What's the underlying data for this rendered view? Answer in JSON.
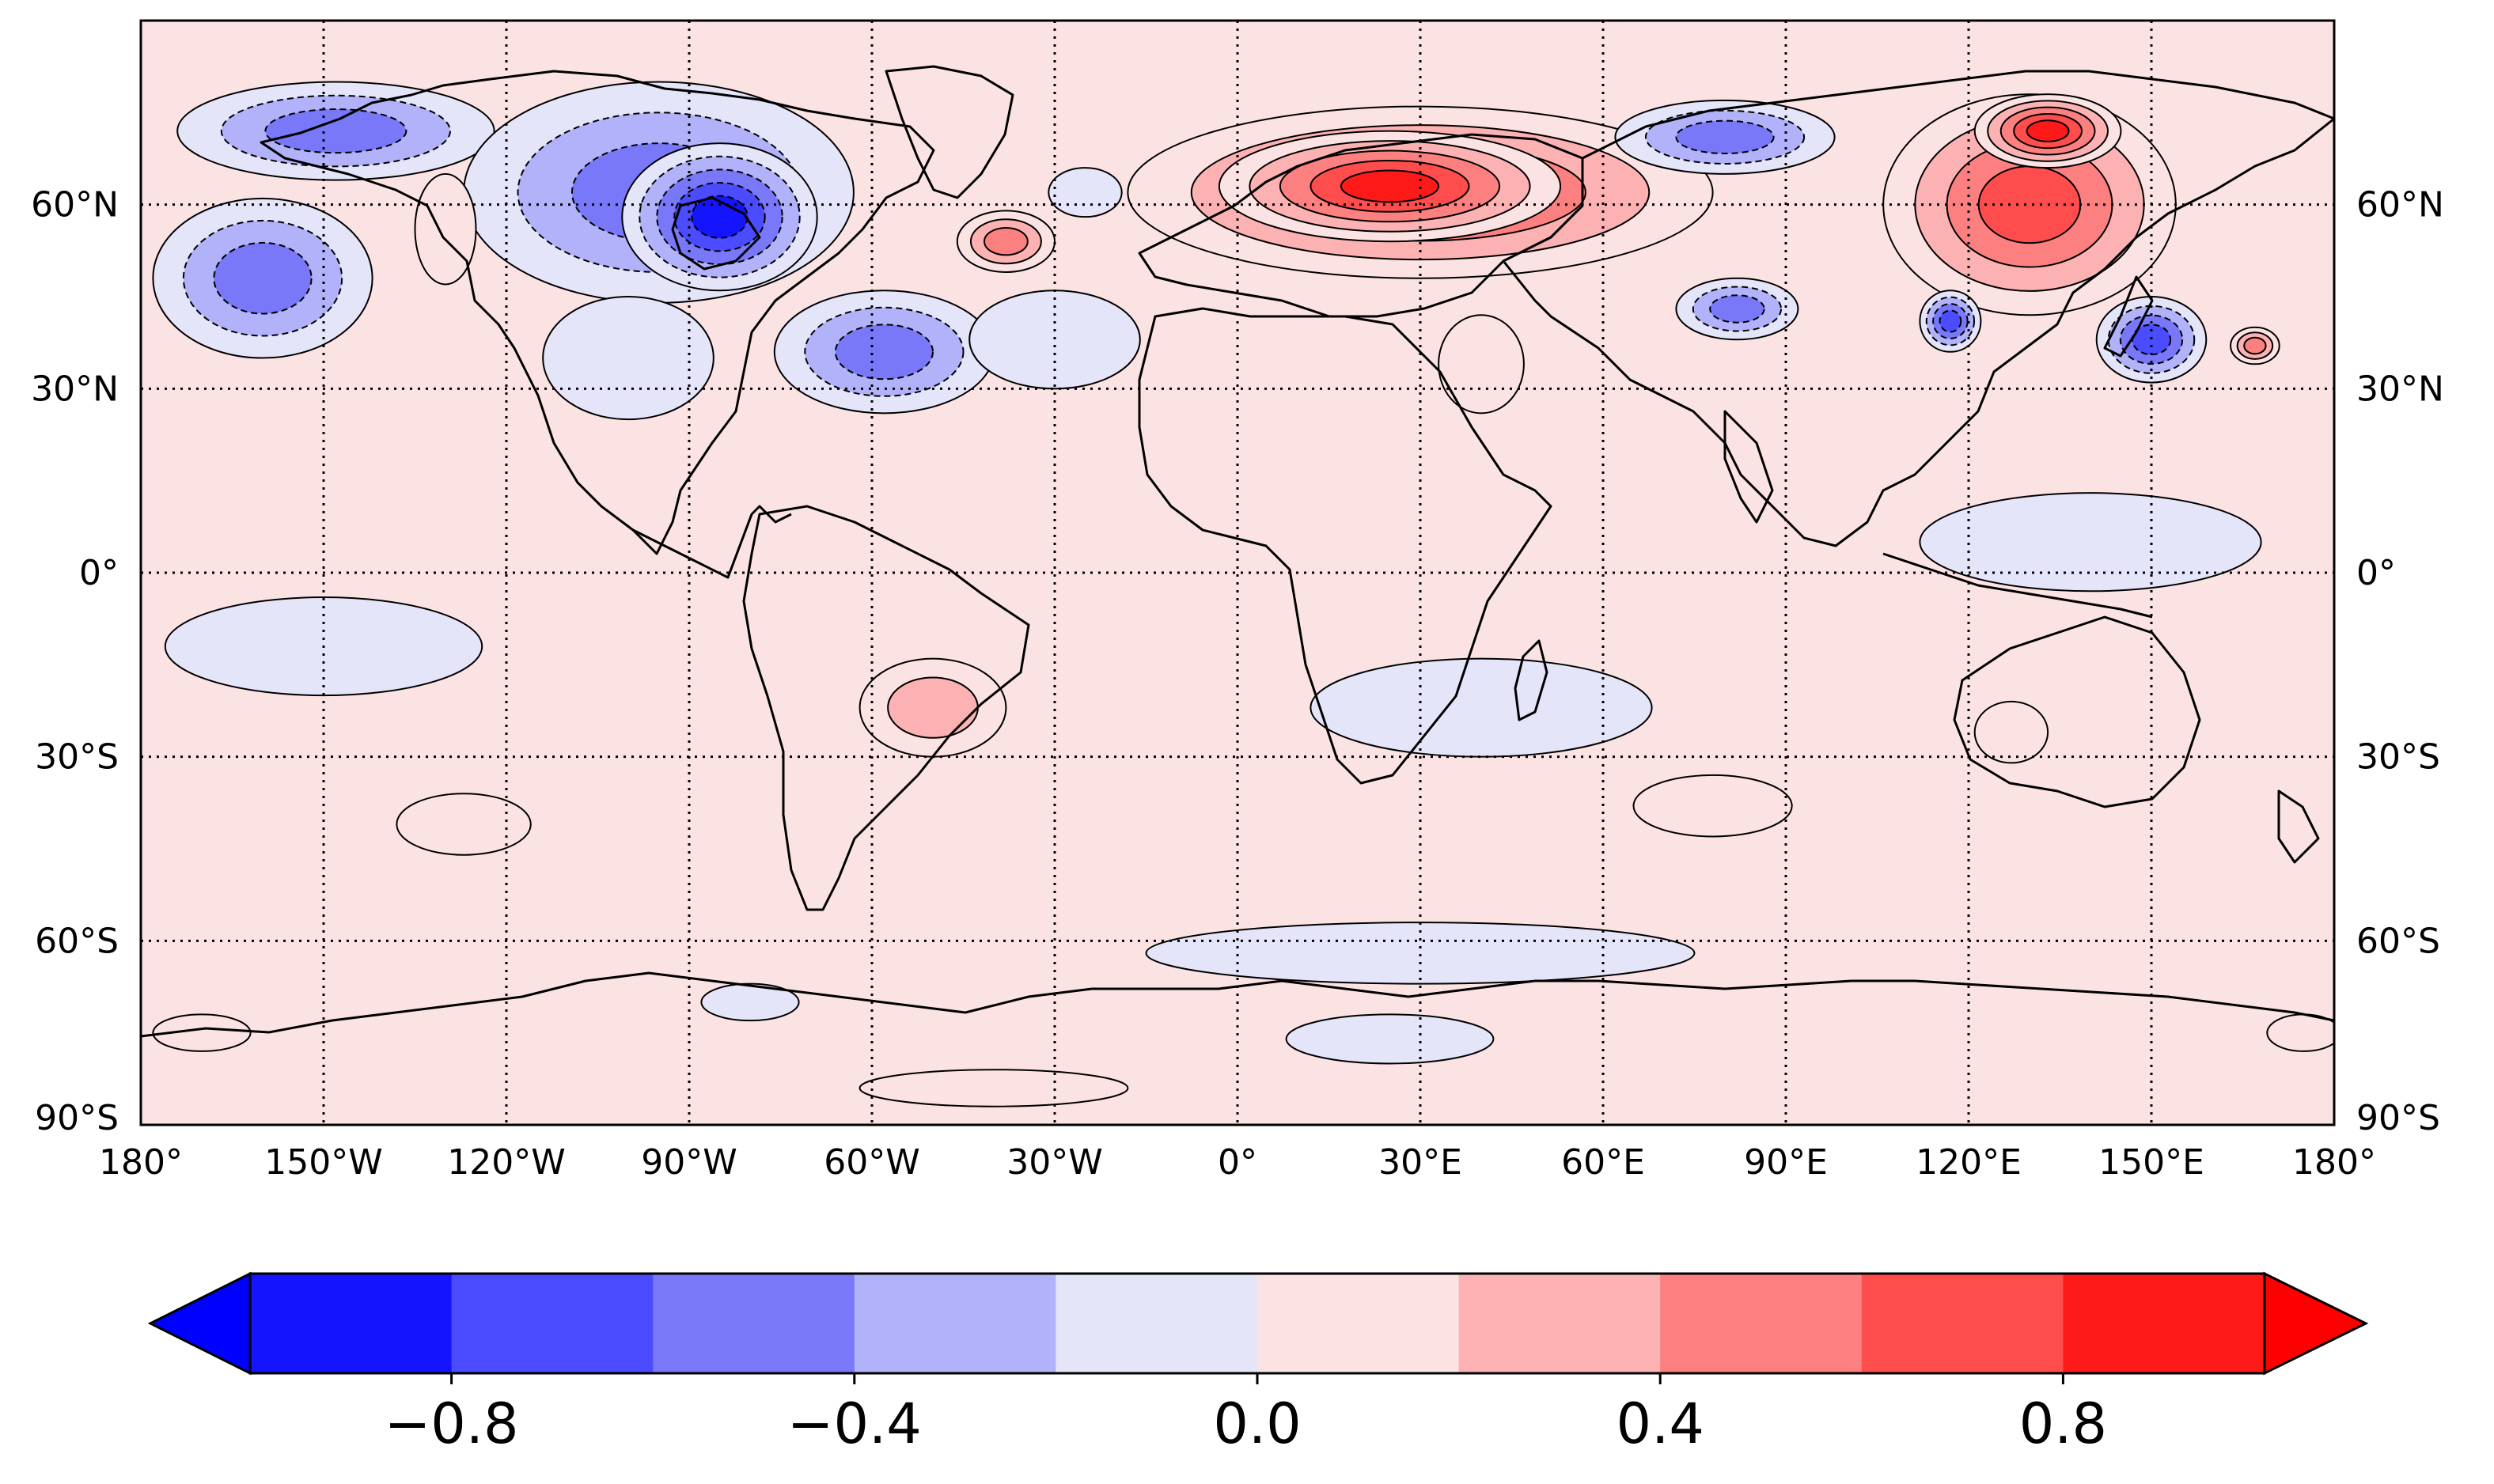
{
  "map": {
    "projection": "PlateCarree",
    "lon_range": [
      -180,
      180
    ],
    "lat_range": [
      -90,
      90
    ],
    "lon_ticks": [
      {
        "value": -180,
        "label": "180°"
      },
      {
        "value": -150,
        "label": "150°W"
      },
      {
        "value": -120,
        "label": "120°W"
      },
      {
        "value": -90,
        "label": "90°W"
      },
      {
        "value": -60,
        "label": "60°W"
      },
      {
        "value": -30,
        "label": "30°W"
      },
      {
        "value": 0,
        "label": "0°"
      },
      {
        "value": 30,
        "label": "30°E"
      },
      {
        "value": 60,
        "label": "60°E"
      },
      {
        "value": 90,
        "label": "90°E"
      },
      {
        "value": 120,
        "label": "120°E"
      },
      {
        "value": 150,
        "label": "150°E"
      },
      {
        "value": 180,
        "label": "180°"
      }
    ],
    "lat_ticks": [
      {
        "value": 60,
        "label": "60°N"
      },
      {
        "value": 30,
        "label": "30°N"
      },
      {
        "value": 0,
        "label": "0°"
      },
      {
        "value": -30,
        "label": "30°S"
      },
      {
        "value": -60,
        "label": "60°S"
      },
      {
        "value": -90,
        "label": "90°S"
      }
    ],
    "gridlines": true,
    "anomaly_regions": [
      {
        "name": "north-pacific-cold-pool",
        "lon": -160,
        "lat": 48,
        "rlon": 18,
        "rlat": 13,
        "value": -0.6
      },
      {
        "name": "bering-alaska-cold-core",
        "lon": -148,
        "lat": 72,
        "rlon": 26,
        "rlat": 8,
        "value": -0.7
      },
      {
        "name": "canada-cold-anomaly",
        "lon": -95,
        "lat": 62,
        "rlon": 32,
        "rlat": 18,
        "value": -0.6
      },
      {
        "name": "hudson-cold-core",
        "lon": -85,
        "lat": 58,
        "rlon": 16,
        "rlat": 12,
        "value": -0.9
      },
      {
        "name": "north-atlantic-cold-anomaly",
        "lon": -58,
        "lat": 36,
        "rlon": 18,
        "rlat": 10,
        "value": -0.5
      },
      {
        "name": "mid-atlantic-cold-band",
        "lon": -30,
        "lat": 38,
        "rlon": 14,
        "rlat": 8,
        "value": -0.3
      },
      {
        "name": "us-cold-anomaly",
        "lon": -100,
        "lat": 35,
        "rlon": 14,
        "rlat": 10,
        "value": -0.3
      },
      {
        "name": "gulf-alaska-warm",
        "lon": -130,
        "lat": 56,
        "rlon": 5,
        "rlat": 9,
        "value": 0.3
      },
      {
        "name": "iceland-cold-spot",
        "lon": -25,
        "lat": 62,
        "rlon": 6,
        "rlat": 4,
        "value": -0.3
      },
      {
        "name": "greenland-sea-warm",
        "lon": -38,
        "lat": 54,
        "rlon": 8,
        "rlat": 5,
        "value": 0.7
      },
      {
        "name": "eurasia-warm-anomaly",
        "lon": 30,
        "lat": 62,
        "rlon": 48,
        "rlat": 14,
        "value": 0.75
      },
      {
        "name": "russia-warm-core",
        "lon": 25,
        "lat": 63,
        "rlon": 28,
        "rlat": 9,
        "value": 0.95
      },
      {
        "name": "middle-east-warm",
        "lon": 40,
        "lat": 34,
        "rlon": 7,
        "rlat": 8,
        "value": 0.3
      },
      {
        "name": "siberia-cold-anomaly",
        "lon": 80,
        "lat": 71,
        "rlon": 18,
        "rlat": 6,
        "value": -0.5
      },
      {
        "name": "central-asia-cold",
        "lon": 82,
        "lat": 43,
        "rlon": 10,
        "rlat": 5,
        "value": -0.5
      },
      {
        "name": "east-asia-warm-anomaly",
        "lon": 130,
        "lat": 60,
        "rlon": 24,
        "rlat": 18,
        "value": 0.75
      },
      {
        "name": "far-east-warm-core",
        "lon": 133,
        "lat": 72,
        "rlon": 12,
        "rlat": 6,
        "value": 0.95
      },
      {
        "name": "china-cold-spot",
        "lon": 117,
        "lat": 41,
        "rlon": 5,
        "rlat": 5,
        "value": -0.8
      },
      {
        "name": "japan-cold-spot",
        "lon": 150,
        "lat": 38,
        "rlon": 9,
        "rlat": 7,
        "value": -0.8
      },
      {
        "name": "pacific-warm-spot",
        "lon": 167,
        "lat": 37,
        "rlon": 4,
        "rlat": 3,
        "value": 0.5
      },
      {
        "name": "south-america-warm",
        "lon": -50,
        "lat": -22,
        "rlon": 12,
        "rlat": 8,
        "value": 0.45
      },
      {
        "name": "south-pacific-warm",
        "lon": -127,
        "lat": -41,
        "rlon": 11,
        "rlat": 5,
        "value": 0.3
      },
      {
        "name": "indian-ocean-warm",
        "lon": 78,
        "lat": -38,
        "rlon": 13,
        "rlat": 5,
        "value": 0.3
      },
      {
        "name": "australia-warm",
        "lon": 127,
        "lat": -26,
        "rlon": 6,
        "rlat": 5,
        "value": 0.3
      },
      {
        "name": "equatorial-pacific-cool",
        "lon": -150,
        "lat": -12,
        "rlon": 26,
        "rlat": 8,
        "value": -0.1
      },
      {
        "name": "indian-ocean-cool",
        "lon": 40,
        "lat": -22,
        "rlon": 28,
        "rlat": 8,
        "value": -0.1
      },
      {
        "name": "west-pacific-cool",
        "lon": 140,
        "lat": 5,
        "rlon": 28,
        "rlat": 8,
        "value": -0.1
      },
      {
        "name": "southern-ocean-cool",
        "lon": 30,
        "lat": -62,
        "rlon": 45,
        "rlat": 5,
        "value": -0.1
      },
      {
        "name": "antarctic-cold-spot",
        "lon": 25,
        "lat": -76,
        "rlon": 17,
        "rlat": 4,
        "value": -0.3
      },
      {
        "name": "ross-sea-cold-spot",
        "lon": -80,
        "lat": -70,
        "rlon": 8,
        "rlat": 3,
        "value": -0.3
      },
      {
        "name": "weddell-warm",
        "lon": -170,
        "lat": -75,
        "rlon": 8,
        "rlat": 3,
        "value": 0.3
      },
      {
        "name": "east-antarctic-warm",
        "lon": 175,
        "lat": -75,
        "rlon": 6,
        "rlat": 3,
        "value": 0.3
      },
      {
        "name": "antarctic-coast-warm",
        "lon": -40,
        "lat": -84,
        "rlon": 22,
        "rlat": 3,
        "value": 0.3
      }
    ]
  },
  "colorbar": {
    "boundaries": [
      -1.0,
      -0.8,
      -0.6,
      -0.4,
      -0.2,
      0.0,
      0.2,
      0.4,
      0.6,
      0.8,
      1.0
    ],
    "colors": [
      "#1414ff",
      "#4b4bff",
      "#7878f8",
      "#b2b2fa",
      "#e5e5fa",
      "#fce3e3",
      "#fcb2b2",
      "#fc8080",
      "#ff4d4d",
      "#ff1a1a"
    ],
    "under_color": "#0000ff",
    "over_color": "#ff0000",
    "extend": "both",
    "ticks": [
      {
        "value": -0.8,
        "label": "−0.8"
      },
      {
        "value": -0.4,
        "label": "−0.4"
      },
      {
        "value": 0.0,
        "label": "0.0"
      },
      {
        "value": 0.4,
        "label": "0.4"
      },
      {
        "value": 0.8,
        "label": "0.8"
      }
    ]
  }
}
